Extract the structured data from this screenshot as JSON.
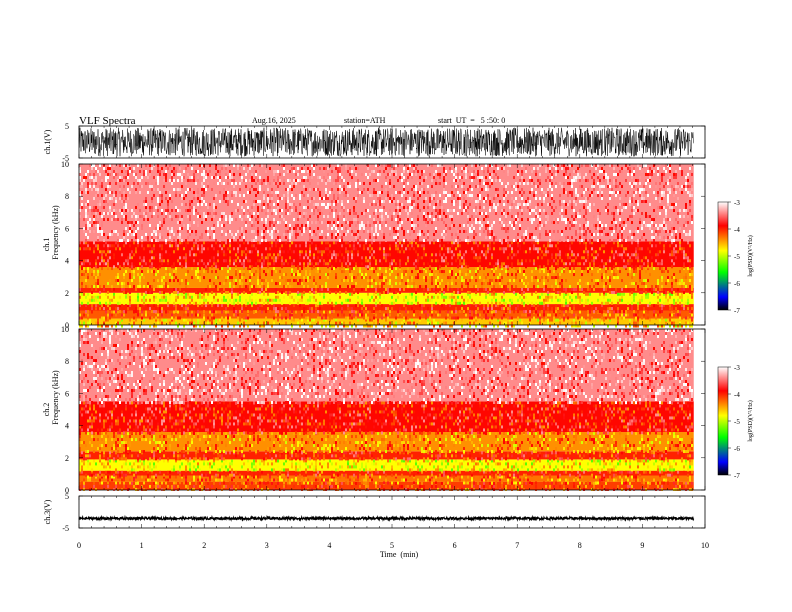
{
  "header": {
    "title": "VLF  Spectra",
    "date": "Aug.16, 2025",
    "station": "station=ATH",
    "start": "start  UT  =   5 :50: 0"
  },
  "chart_data": [
    {
      "type": "line",
      "panel": "ch1-waveform",
      "ylabel": "ch.1(V)",
      "ylim": [
        -5,
        5
      ],
      "yticks": [
        "5",
        "-5"
      ],
      "xlim": [
        0,
        10
      ],
      "x_end": 9.82,
      "amplitude": 4.5,
      "color": "#000000"
    },
    {
      "type": "heatmap",
      "panel": "ch1-spectrogram",
      "ylabel": "ch.1\nFrequency  (kHz)",
      "ylim": [
        0,
        10
      ],
      "yticks": [
        "0",
        "2",
        "4",
        "6",
        "8",
        "10"
      ],
      "xlim": [
        0,
        10
      ],
      "x_end": 9.82,
      "bands": [
        {
          "f0": 0.0,
          "f1": 0.4,
          "level": -4.6
        },
        {
          "f0": 0.4,
          "f1": 0.9,
          "level": -4.2
        },
        {
          "f0": 0.9,
          "f1": 1.3,
          "level": -4.0
        },
        {
          "f0": 1.3,
          "f1": 2.0,
          "level": -4.8
        },
        {
          "f0": 2.0,
          "f1": 2.3,
          "level": -4.0
        },
        {
          "f0": 2.3,
          "f1": 3.6,
          "level": -4.4
        },
        {
          "f0": 3.6,
          "f1": 5.2,
          "level": -3.9
        },
        {
          "f0": 5.2,
          "f1": 10.0,
          "level": -3.4
        }
      ],
      "colorbar": {
        "label": "log(PSD)(V²/Hz)",
        "ticks": [
          "-3",
          "-4",
          "-5",
          "-6",
          "-7"
        ],
        "range": [
          -7,
          -3
        ]
      }
    },
    {
      "type": "heatmap",
      "panel": "ch2-spectrogram",
      "ylabel": "ch.2\nFrequency  (kHz)",
      "ylim": [
        0,
        10
      ],
      "yticks": [
        "0",
        "2",
        "4",
        "6",
        "8",
        "10"
      ],
      "xlim": [
        0,
        10
      ],
      "x_end": 9.82,
      "bands": [
        {
          "f0": 0.0,
          "f1": 0.5,
          "level": -4.1
        },
        {
          "f0": 0.5,
          "f1": 0.9,
          "level": -4.3
        },
        {
          "f0": 0.9,
          "f1": 1.2,
          "level": -4.0
        },
        {
          "f0": 1.2,
          "f1": 1.9,
          "level": -4.8
        },
        {
          "f0": 1.9,
          "f1": 2.4,
          "level": -4.0
        },
        {
          "f0": 2.4,
          "f1": 3.6,
          "level": -4.4
        },
        {
          "f0": 3.6,
          "f1": 5.5,
          "level": -3.9
        },
        {
          "f0": 5.5,
          "f1": 10.0,
          "level": -3.4
        }
      ],
      "colorbar": {
        "label": "log(PSD)(V²/Hz)",
        "ticks": [
          "-3",
          "-4",
          "-5",
          "-6",
          "-7"
        ],
        "range": [
          -7,
          -3
        ]
      }
    },
    {
      "type": "line",
      "panel": "ch3-waveform",
      "ylabel": "ch.3(V)",
      "ylim": [
        -5,
        5
      ],
      "yticks": [
        "5",
        "-5"
      ],
      "xlim": [
        0,
        10
      ],
      "x_end": 9.82,
      "offset": -2.0,
      "amplitude": 0.4,
      "color": "#000000"
    }
  ],
  "xaxis": {
    "label": "Time  (min)",
    "ticks": [
      "0",
      "1",
      "2",
      "3",
      "4",
      "5",
      "6",
      "7",
      "8",
      "9",
      "10"
    ]
  },
  "colormap": [
    "#000000",
    "#0000ff",
    "#00ff00",
    "#ffff00",
    "#ff0000",
    "#ffffff"
  ]
}
